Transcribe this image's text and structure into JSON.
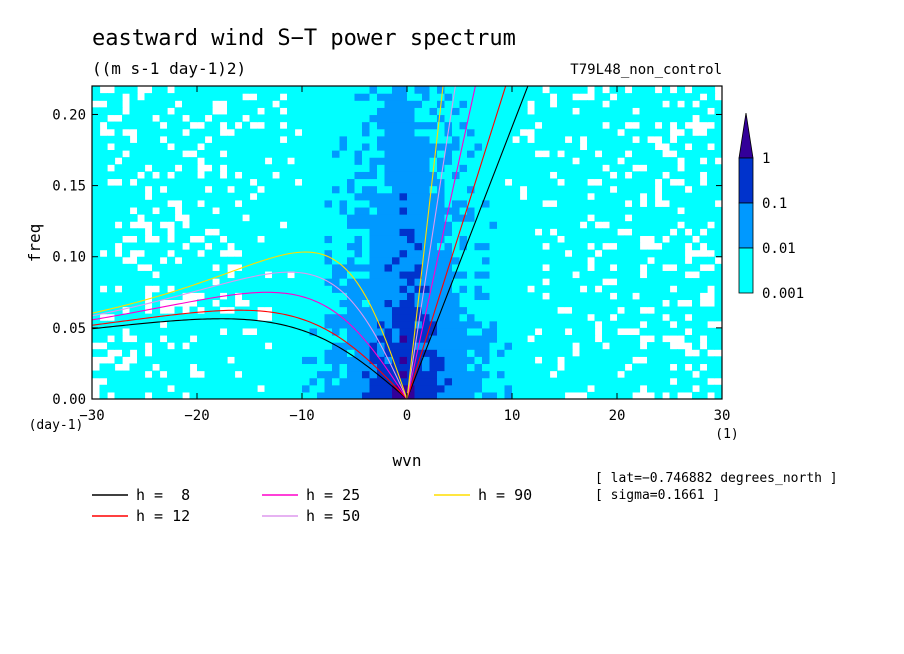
{
  "chart_data": {
    "type": "heatmap",
    "title": "eastward wind S−T power spectrum",
    "units": "((m s-1 day-1)2)",
    "run_label": "T79L48_non_control",
    "xlabel": "wvn",
    "ylabel": "freq",
    "x_unit": "(1)",
    "y_unit": "(day-1)",
    "xlim": [
      -30,
      30
    ],
    "ylim": [
      0,
      0.22
    ],
    "x_ticks": [
      -30,
      -20,
      -10,
      0,
      10,
      20,
      30
    ],
    "x_tick_labels": [
      "−30",
      "−20",
      "−10",
      "0",
      "10",
      "20",
      "30"
    ],
    "y_ticks": [
      0.0,
      0.05,
      0.1,
      0.15,
      0.2
    ],
    "y_tick_labels": [
      "0.00",
      "0.05",
      "0.10",
      "0.15",
      "0.20"
    ],
    "colorbar": {
      "levels": [
        0.001,
        0.01,
        0.1,
        1
      ],
      "labels": [
        "0.001",
        "0.01",
        "0.1",
        "1"
      ],
      "colors": [
        "#00ffff",
        "#0099ff",
        "#0033cc",
        "#330099"
      ]
    },
    "colors": {
      "low": "#00ffff",
      "mid": "#0099ff",
      "high": "#0033cc",
      "max": "#330099"
    },
    "dispersion_curves": [
      {
        "label": "h =  8",
        "h": 8,
        "color": "#000000"
      },
      {
        "label": "h = 12",
        "h": 12,
        "color": "#ff0000"
      },
      {
        "label": "h = 25",
        "h": 25,
        "color": "#ff00cc"
      },
      {
        "label": "h = 50",
        "h": 50,
        "color": "#dd99ee"
      },
      {
        "label": "h = 90",
        "h": 90,
        "color": "#ffdd00"
      }
    ],
    "annotations": [
      "[ lat=−0.746882 degrees_north ]",
      "[ sigma=0.1661 ]"
    ]
  }
}
